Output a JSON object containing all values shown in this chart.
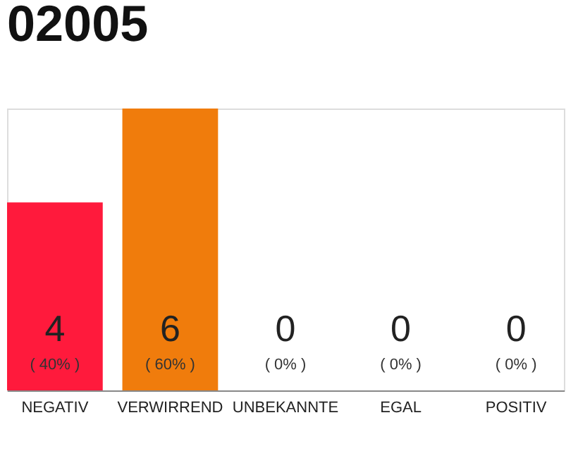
{
  "chart_data": {
    "type": "bar",
    "title": "02005",
    "categories": [
      "NEGATIV",
      "VERWIRREND",
      "UNBEKANNTE",
      "EGAL",
      "POSITIV"
    ],
    "values": [
      4,
      6,
      0,
      0,
      0
    ],
    "colors": [
      "#ff1a3c",
      "#f07c0c",
      "#eeeeee",
      "#eeeeee",
      "#eeeeee"
    ],
    "value_labels": [
      "4",
      "6",
      "0",
      "0",
      "0"
    ],
    "annotations": [
      "( 40% )",
      "( 60% )",
      "( 0% )",
      "( 0% )",
      "( 0% )"
    ]
  }
}
